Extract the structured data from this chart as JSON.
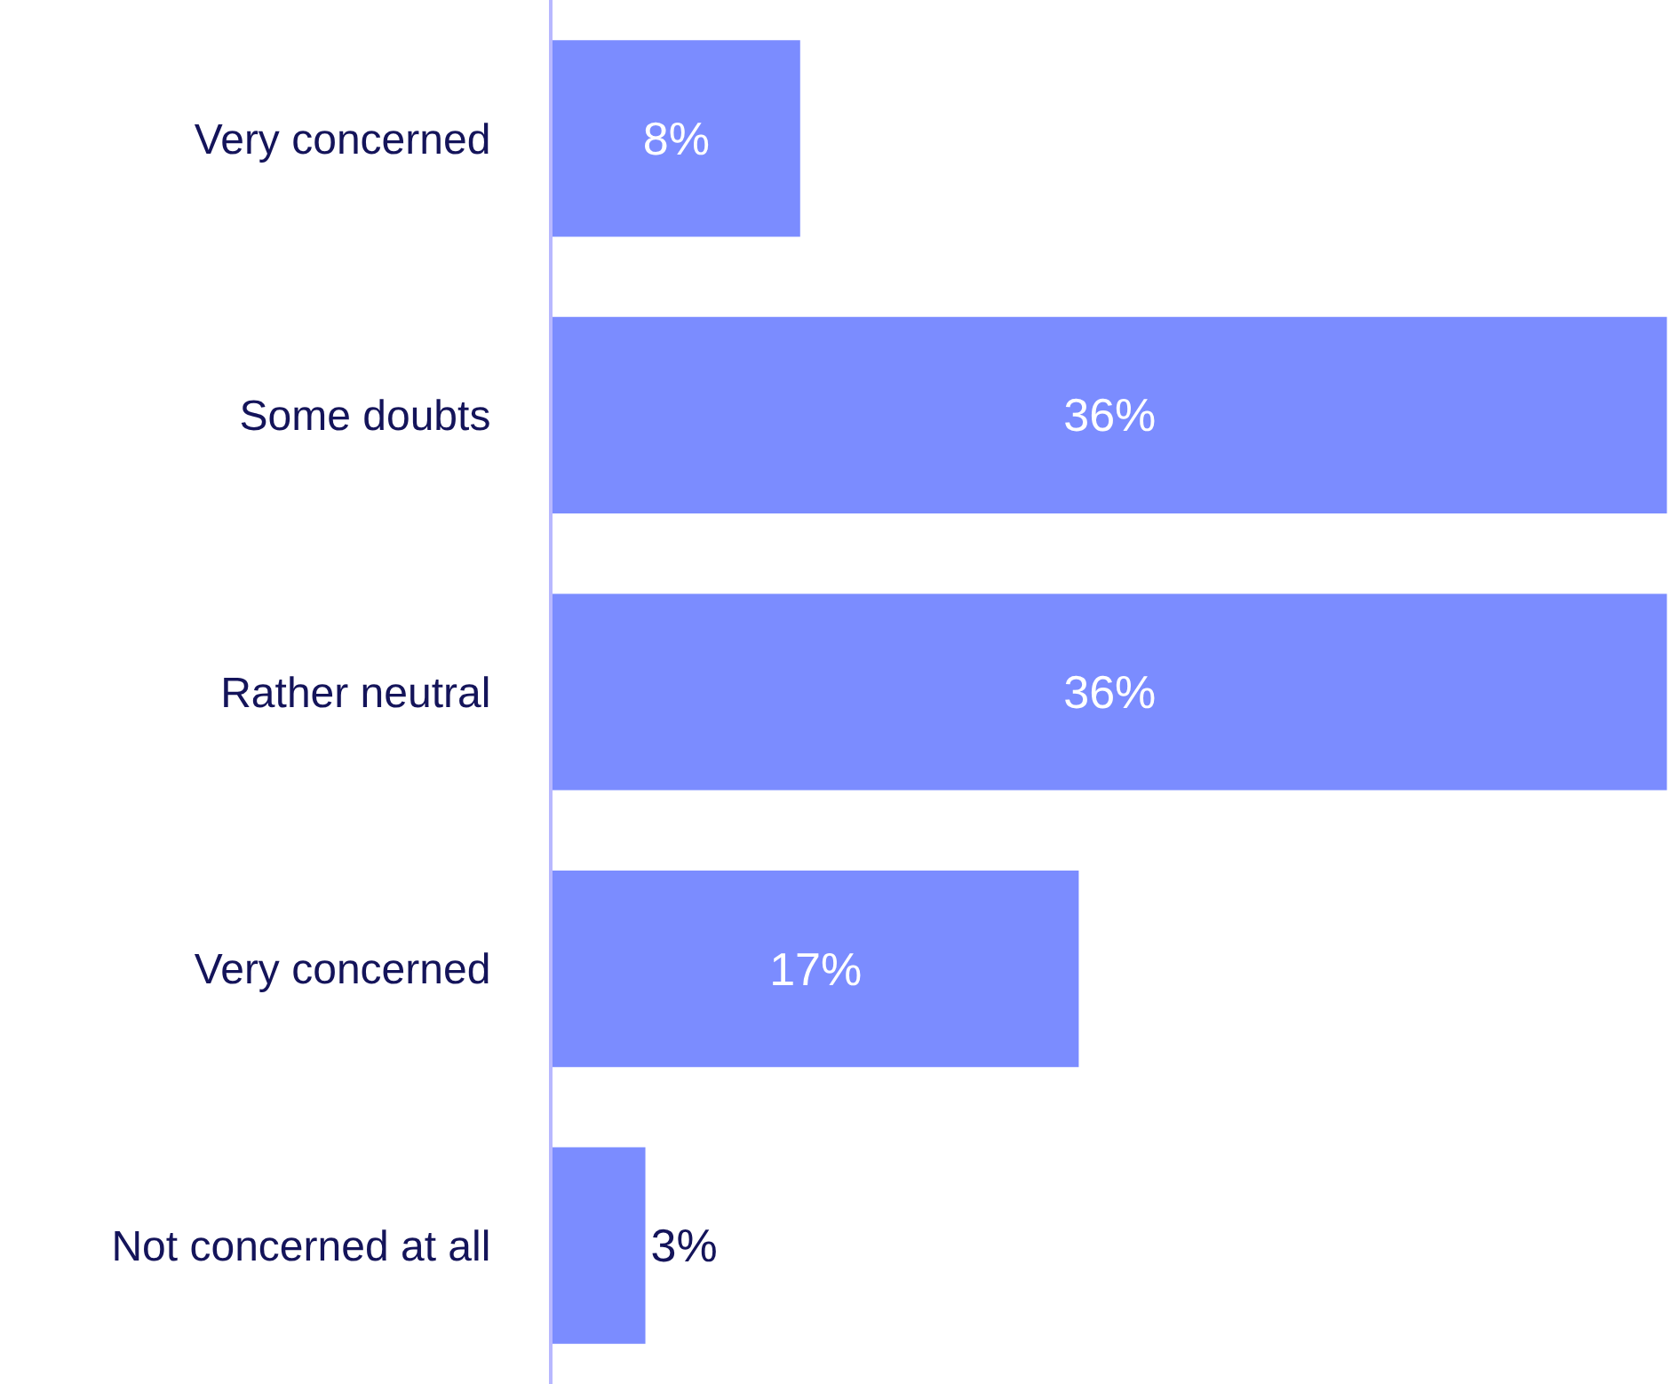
{
  "chart_data": {
    "type": "bar",
    "orientation": "horizontal",
    "categories": [
      "Very concerned",
      "Some doubts",
      "Rather neutral",
      "Very concerned",
      "Not concerned at all"
    ],
    "values": [
      8,
      36,
      36,
      17,
      3
    ],
    "value_labels": [
      "8%",
      "36%",
      "36%",
      "17%",
      "3%"
    ],
    "color": "#7b8cff",
    "xlim": [
      0,
      36.1
    ],
    "tick_labels": "y"
  }
}
